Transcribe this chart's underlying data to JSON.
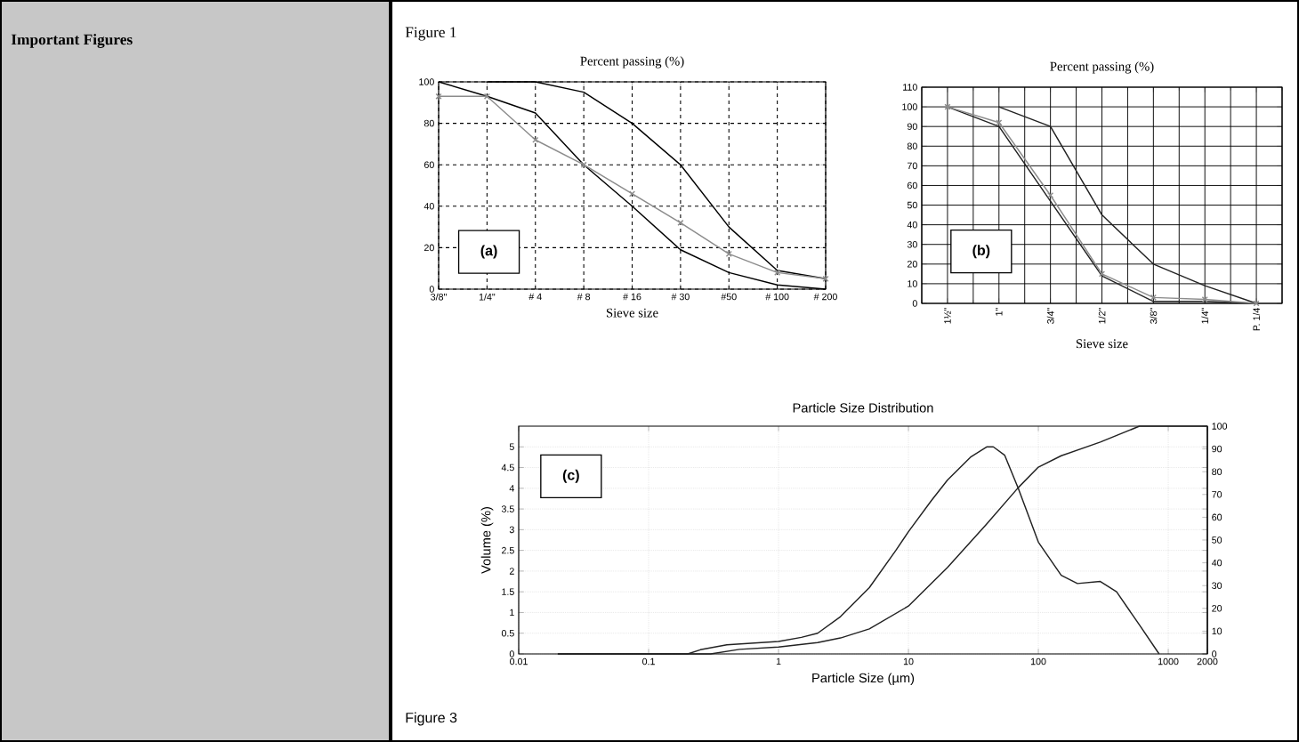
{
  "chart_data": [
    {
      "type": "line",
      "title": "Percent passing (%)",
      "xlabel": "Sieve size",
      "categories": [
        "3/8\"",
        "1/4\"",
        "# 4",
        "# 8",
        "# 16",
        "# 30",
        "#50",
        "# 100",
        "# 200"
      ],
      "ylim": [
        0,
        100
      ],
      "yticks": [
        0,
        20,
        40,
        60,
        80,
        100
      ],
      "grid": true,
      "annotations": [
        "Important Figures",
        "Figure 1",
        "(a)"
      ],
      "series": [
        {
          "color": "#000000",
          "marker": "none",
          "values": [
            null,
            100,
            100,
            95,
            80,
            60,
            30,
            9,
            5
          ]
        },
        {
          "color": "#000000",
          "marker": "none",
          "values": [
            100,
            93,
            85,
            60,
            40,
            19,
            8,
            2,
            0
          ]
        },
        {
          "color": "#8c8c8c",
          "marker": "cross",
          "values": [
            93,
            93,
            72,
            60,
            46,
            32,
            17,
            8,
            5
          ]
        }
      ]
    },
    {
      "type": "line",
      "title": "Percent passing  (%)",
      "xlabel": "Sieve size",
      "categories": [
        "1½\"",
        "1\"",
        "3/4\"",
        "1/2\"",
        "3/8\"",
        "1/4\"",
        "P. 1/4"
      ],
      "ylim": [
        0,
        110
      ],
      "yticks": [
        0,
        10,
        20,
        30,
        40,
        50,
        60,
        70,
        80,
        90,
        100,
        110
      ],
      "grid": true,
      "annotations": [
        "(b)"
      ],
      "series": [
        {
          "color": "#222222",
          "marker": "none",
          "values": [
            null,
            100,
            90,
            45,
            20,
            9,
            0
          ]
        },
        {
          "color": "#222222",
          "marker": "none",
          "values": [
            100,
            90,
            52,
            14,
            1,
            1,
            0
          ]
        },
        {
          "color": "#8c8c8c",
          "marker": "cross",
          "values": [
            100,
            92,
            55,
            15,
            3,
            2,
            0
          ]
        }
      ]
    },
    {
      "type": "line",
      "title": "Particle Size Distribution",
      "xlabel": "Particle Size (µm)",
      "ylabel": "Volume (%)",
      "log": "x",
      "xlim": [
        0.01,
        2000
      ],
      "xticks": [
        0.01,
        0.1,
        1,
        10,
        100,
        1000,
        2000
      ],
      "ylim": [
        0,
        5.5
      ],
      "yticks": [
        0,
        0.5,
        1,
        1.5,
        2,
        2.5,
        3,
        3.5,
        4,
        4.5,
        5
      ],
      "y2lim": [
        0,
        100
      ],
      "y2ticks": [
        0,
        10,
        20,
        30,
        40,
        50,
        60,
        70,
        80,
        90,
        100
      ],
      "grid": true,
      "annotations": [
        "(c)",
        "Figure 3"
      ],
      "series": [
        {
          "color": "#222222",
          "x": [
            0.02,
            0.2,
            0.25,
            0.4,
            1,
            1.5,
            2,
            3,
            5,
            8,
            10,
            15,
            20,
            30,
            40,
            45,
            55,
            70,
            100,
            150,
            200,
            300,
            400,
            600,
            850
          ],
          "values": [
            0,
            0,
            0.1,
            0.22,
            0.3,
            0.4,
            0.5,
            0.9,
            1.6,
            2.5,
            2.95,
            3.7,
            4.2,
            4.75,
            5.0,
            5.0,
            4.8,
            4.0,
            2.7,
            1.9,
            1.7,
            1.75,
            1.5,
            0.7,
            0
          ]
        },
        {
          "color": "#222222",
          "axis": "y2",
          "x": [
            0.02,
            0.3,
            0.5,
            1,
            2,
            3,
            5,
            10,
            20,
            40,
            70,
            100,
            150,
            300,
            600,
            2000
          ],
          "values": [
            0,
            0,
            2,
            3,
            5,
            7,
            11,
            21,
            38,
            57,
            73,
            82,
            87,
            93,
            100,
            100
          ]
        }
      ]
    }
  ]
}
